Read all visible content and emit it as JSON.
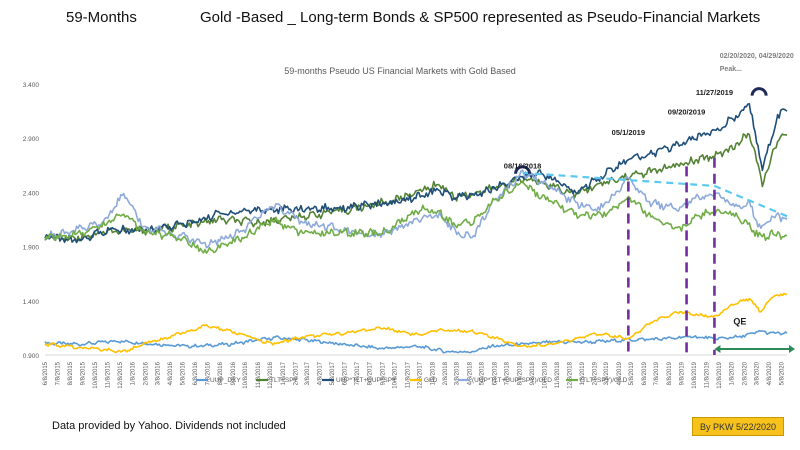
{
  "header": {
    "left_title": "59-Months",
    "main_title": "Gold -Based _ Long-term Bonds & SP500 represented as Pseudo-Financial Markets"
  },
  "footer": {
    "source_note": "Data provided by Yahoo.  Dividends not included",
    "credit": "By PKW 5/22/2020"
  },
  "chart_data": {
    "type": "line",
    "title": "59-months  Pseudo US Financial Markets with Gold Based",
    "y_ticks": [
      "0.900",
      "1.400",
      "1.900",
      "2.400",
      "2.900",
      "3.400"
    ],
    "ylim": [
      0.9,
      3.4
    ],
    "xlim": [
      "2015-06-08",
      "2020-05-22"
    ],
    "x_ticks": [
      "6/8/2015",
      "7/8/2015",
      "8/8/2015",
      "9/8/2015",
      "10/8/2015",
      "11/8/2015",
      "12/8/2015",
      "1/8/2016",
      "2/8/2016",
      "3/8/2016",
      "4/8/2016",
      "5/8/2016",
      "6/8/2016",
      "7/8/2016",
      "8/8/2016",
      "9/8/2016",
      "10/8/2016",
      "11/8/2016",
      "12/8/2016",
      "1/8/2017",
      "2/8/2017",
      "3/8/2017",
      "4/8/2017",
      "5/8/2017",
      "6/8/2017",
      "7/8/2017",
      "8/8/2017",
      "9/8/2017",
      "10/8/2017",
      "11/8/2017",
      "12/8/2017",
      "1/8/2018",
      "2/8/2018",
      "3/8/2018",
      "4/8/2018",
      "5/8/2018",
      "6/8/2018",
      "7/8/2018",
      "8/8/2018",
      "9/8/2018",
      "10/8/2018",
      "11/8/2018",
      "12/8/2018",
      "1/8/2019",
      "2/8/2019",
      "3/8/2019",
      "4/8/2019",
      "5/8/2019",
      "6/8/2019",
      "7/8/2019",
      "8/8/2019",
      "9/8/2019",
      "10/8/2019",
      "11/8/2019",
      "12/8/2019",
      "1/8/2020",
      "2/8/2020",
      "3/8/2020",
      "4/8/2020",
      "5/8/2020"
    ],
    "legend_position": "bottom",
    "grid": false,
    "series": [
      {
        "name": "UUP_DXY",
        "color": "#5b9bd5",
        "points": [
          [
            "2015-06-08",
            1.01
          ],
          [
            "2015-09-01",
            1.0
          ],
          [
            "2015-12-01",
            1.03
          ],
          [
            "2016-03-01",
            1.0
          ],
          [
            "2016-06-01",
            0.98
          ],
          [
            "2016-09-01",
            1.0
          ],
          [
            "2016-12-20",
            1.06
          ],
          [
            "2017-03-01",
            1.04
          ],
          [
            "2017-06-01",
            1.0
          ],
          [
            "2017-09-08",
            0.96
          ],
          [
            "2017-12-01",
            0.98
          ],
          [
            "2018-02-15",
            0.93
          ],
          [
            "2018-04-15",
            0.93
          ],
          [
            "2018-06-01",
            0.98
          ],
          [
            "2018-08-16",
            1.0
          ],
          [
            "2018-11-01",
            1.02
          ],
          [
            "2019-02-01",
            1.02
          ],
          [
            "2019-05-01",
            1.04
          ],
          [
            "2019-08-01",
            1.05
          ],
          [
            "2019-10-01",
            1.07
          ],
          [
            "2019-12-01",
            1.05
          ],
          [
            "2020-02-01",
            1.07
          ],
          [
            "2020-03-19",
            1.12
          ],
          [
            "2020-04-15",
            1.1
          ],
          [
            "2020-05-22",
            1.1
          ]
        ]
      },
      {
        "name": "TLT+SPY",
        "color": "#548235",
        "points": [
          [
            "2015-06-08",
            1.99
          ],
          [
            "2015-08-24",
            1.98
          ],
          [
            "2015-11-01",
            2.04
          ],
          [
            "2016-02-01",
            2.05
          ],
          [
            "2016-06-01",
            2.1
          ],
          [
            "2016-08-01",
            2.15
          ],
          [
            "2016-11-01",
            2.12
          ],
          [
            "2017-01-01",
            2.15
          ],
          [
            "2017-06-01",
            2.23
          ],
          [
            "2017-10-01",
            2.32
          ],
          [
            "2018-01-26",
            2.48
          ],
          [
            "2018-03-01",
            2.36
          ],
          [
            "2018-05-01",
            2.4
          ],
          [
            "2018-08-16",
            2.52
          ],
          [
            "2018-10-01",
            2.5
          ],
          [
            "2018-12-24",
            2.38
          ],
          [
            "2019-02-01",
            2.45
          ],
          [
            "2019-05-01",
            2.55
          ],
          [
            "2019-08-01",
            2.62
          ],
          [
            "2019-09-20",
            2.67
          ],
          [
            "2019-11-27",
            2.74
          ],
          [
            "2020-01-15",
            2.82
          ],
          [
            "2020-02-20",
            2.95
          ],
          [
            "2020-03-23",
            2.48
          ],
          [
            "2020-04-29",
            2.88
          ],
          [
            "2020-05-22",
            2.93
          ]
        ]
      },
      {
        "name": "UUP*TLT+UUP*SPY",
        "color": "#1f4e79",
        "points": [
          [
            "2015-06-08",
            2.0
          ],
          [
            "2015-08-24",
            1.95
          ],
          [
            "2015-11-01",
            2.05
          ],
          [
            "2016-02-01",
            2.05
          ],
          [
            "2016-06-01",
            2.12
          ],
          [
            "2016-08-01",
            2.2
          ],
          [
            "2016-11-01",
            2.24
          ],
          [
            "2017-01-01",
            2.24
          ],
          [
            "2017-06-01",
            2.26
          ],
          [
            "2017-10-01",
            2.3
          ],
          [
            "2018-01-26",
            2.42
          ],
          [
            "2018-03-01",
            2.35
          ],
          [
            "2018-05-01",
            2.38
          ],
          [
            "2018-08-16",
            2.55
          ],
          [
            "2018-10-01",
            2.58
          ],
          [
            "2018-12-24",
            2.4
          ],
          [
            "2019-02-01",
            2.5
          ],
          [
            "2019-05-01",
            2.7
          ],
          [
            "2019-08-01",
            2.8
          ],
          [
            "2019-09-20",
            2.87
          ],
          [
            "2019-11-27",
            2.98
          ],
          [
            "2020-01-15",
            3.08
          ],
          [
            "2020-02-20",
            3.22
          ],
          [
            "2020-03-23",
            2.6
          ],
          [
            "2020-04-29",
            3.1
          ],
          [
            "2020-05-22",
            3.15
          ]
        ]
      },
      {
        "name": "GLD",
        "color": "#ffc000",
        "points": [
          [
            "2015-06-08",
            1.0
          ],
          [
            "2015-09-01",
            0.97
          ],
          [
            "2015-12-17",
            0.93
          ],
          [
            "2016-02-01",
            1.0
          ],
          [
            "2016-04-01",
            1.06
          ],
          [
            "2016-07-06",
            1.17
          ],
          [
            "2016-09-01",
            1.12
          ],
          [
            "2016-12-15",
            1.0
          ],
          [
            "2017-03-01",
            1.07
          ],
          [
            "2017-06-01",
            1.1
          ],
          [
            "2017-09-08",
            1.15
          ],
          [
            "2017-12-12",
            1.08
          ],
          [
            "2018-01-25",
            1.13
          ],
          [
            "2018-04-15",
            1.12
          ],
          [
            "2018-08-16",
            0.98
          ],
          [
            "2018-11-01",
            1.0
          ],
          [
            "2019-02-20",
            1.1
          ],
          [
            "2019-05-01",
            1.05
          ],
          [
            "2019-06-25",
            1.2
          ],
          [
            "2019-09-04",
            1.3
          ],
          [
            "2019-11-27",
            1.25
          ],
          [
            "2020-01-08",
            1.36
          ],
          [
            "2020-02-20",
            1.42
          ],
          [
            "2020-03-19",
            1.3
          ],
          [
            "2020-04-15",
            1.44
          ],
          [
            "2020-05-22",
            1.46
          ]
        ]
      },
      {
        "name": "(UUP*TLT+UUP*SPY)/GLD",
        "color": "#8eaadb",
        "points": [
          [
            "2015-06-08",
            2.0
          ],
          [
            "2015-08-24",
            2.05
          ],
          [
            "2015-11-01",
            2.15
          ],
          [
            "2015-12-17",
            2.38
          ],
          [
            "2016-02-01",
            2.1
          ],
          [
            "2016-05-01",
            2.0
          ],
          [
            "2016-07-06",
            1.92
          ],
          [
            "2016-10-01",
            2.05
          ],
          [
            "2016-12-15",
            2.28
          ],
          [
            "2017-03-01",
            2.12
          ],
          [
            "2017-06-01",
            2.06
          ],
          [
            "2017-09-08",
            2.0
          ],
          [
            "2017-12-12",
            2.16
          ],
          [
            "2018-01-25",
            2.18
          ],
          [
            "2018-03-01",
            2.05
          ],
          [
            "2018-04-15",
            1.97
          ],
          [
            "2018-06-01",
            2.3
          ],
          [
            "2018-08-16",
            2.58
          ],
          [
            "2018-10-01",
            2.5
          ],
          [
            "2018-12-24",
            2.3
          ],
          [
            "2019-02-20",
            2.25
          ],
          [
            "2019-05-01",
            2.52
          ],
          [
            "2019-06-25",
            2.3
          ],
          [
            "2019-09-04",
            2.25
          ],
          [
            "2019-10-15",
            2.35
          ],
          [
            "2019-11-27",
            2.4
          ],
          [
            "2020-01-08",
            2.28
          ],
          [
            "2020-02-20",
            2.3
          ],
          [
            "2020-03-19",
            2.05
          ],
          [
            "2020-04-15",
            2.18
          ],
          [
            "2020-05-22",
            2.15
          ]
        ]
      },
      {
        "name": "(TLT+SPY)/GLD",
        "color": "#70ad47",
        "points": [
          [
            "2015-06-08",
            1.98
          ],
          [
            "2015-08-24",
            2.02
          ],
          [
            "2015-11-01",
            2.1
          ],
          [
            "2015-12-17",
            2.22
          ],
          [
            "2016-02-01",
            2.05
          ],
          [
            "2016-05-01",
            1.98
          ],
          [
            "2016-07-06",
            1.85
          ],
          [
            "2016-10-01",
            1.98
          ],
          [
            "2016-12-15",
            2.15
          ],
          [
            "2017-03-01",
            2.02
          ],
          [
            "2017-06-01",
            2.03
          ],
          [
            "2017-09-08",
            2.02
          ],
          [
            "2017-12-12",
            2.25
          ],
          [
            "2018-01-25",
            2.22
          ],
          [
            "2018-03-01",
            2.1
          ],
          [
            "2018-04-15",
            2.12
          ],
          [
            "2018-06-01",
            2.3
          ],
          [
            "2018-08-16",
            2.5
          ],
          [
            "2018-10-01",
            2.35
          ],
          [
            "2018-12-24",
            2.2
          ],
          [
            "2019-02-20",
            2.18
          ],
          [
            "2019-05-01",
            2.35
          ],
          [
            "2019-06-25",
            2.18
          ],
          [
            "2019-09-04",
            2.05
          ],
          [
            "2019-10-15",
            2.18
          ],
          [
            "2019-11-27",
            2.22
          ],
          [
            "2020-01-08",
            2.2
          ],
          [
            "2020-02-20",
            2.1
          ],
          [
            "2020-03-19",
            1.98
          ],
          [
            "2020-04-15",
            2.02
          ],
          [
            "2020-05-22",
            2.0
          ]
        ]
      }
    ],
    "annotations": [
      {
        "text": "08/16/2018",
        "date": "2018-08-16",
        "y": 2.62
      },
      {
        "text": "05/1/2019",
        "date": "2019-05-01",
        "y": 2.93
      },
      {
        "text": "09/20/2019",
        "date": "2019-09-20",
        "y": 3.12
      },
      {
        "text": "11/27/2019",
        "date": "2019-11-27",
        "y": 3.3
      },
      {
        "text": "02/20/2020,  04/29/2020",
        "date": "2019-12-10",
        "y": 3.64
      },
      {
        "text": "Peak...",
        "date": "2019-12-10",
        "y": 3.52
      },
      {
        "text": "QE",
        "date": "2020-01-28",
        "y": 1.18
      }
    ],
    "trend_line": {
      "color": "#5bc8f0",
      "points": [
        [
          "2018-08-16",
          2.58
        ],
        [
          "2019-11-27",
          2.46
        ],
        [
          "2020-05-22",
          2.18
        ]
      ]
    },
    "event_lines": {
      "color": "#7030a0",
      "dates": [
        "2019-05-01",
        "2019-09-20",
        "2019-11-27"
      ]
    },
    "qe_range": {
      "color": "#2e8b57",
      "start": "2019-11-27",
      "end": "2020-05-22"
    }
  }
}
